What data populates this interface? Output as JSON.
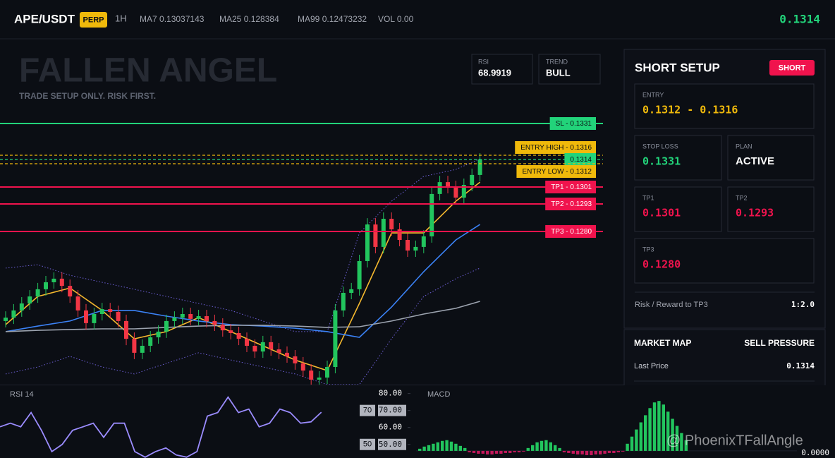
{
  "header": {
    "symbol": "APE/USDT",
    "badge": "PERP",
    "interval": "1H",
    "readouts": [
      {
        "label": "MA7",
        "value": 0.13037143
      },
      {
        "label": "MA25",
        "value": 0.128384
      },
      {
        "label": "MA99",
        "value": 0.12473232
      },
      {
        "label": "VOL",
        "value": "0.00"
      }
    ],
    "last_price": 0.1314
  },
  "watermark": {
    "title": "FALLEN ANGEL",
    "subtitle": "TRADE SETUP ONLY. RISK FIRST."
  },
  "indicators": [
    {
      "label": "RSI",
      "value": 68.9919
    },
    {
      "label": "TREND",
      "value": "BULL"
    }
  ],
  "setup": {
    "title": "SHORT SETUP",
    "badge": "SHORT",
    "cards": [
      {
        "label": "ENTRY",
        "value": "0.1312 - 0.1316",
        "color": "#f0b90b"
      },
      {
        "label": "STOP LOSS",
        "value": "0.1331",
        "color": "#22d37a"
      },
      {
        "label": "PLAN",
        "value": "ACTIVE",
        "color": "#ffffff"
      },
      {
        "label": "TP1",
        "value": "0.1301",
        "color": "#f0134d"
      },
      {
        "label": "TP2",
        "value": "0.1293",
        "color": "#f0134d"
      },
      {
        "label": "TP3",
        "value": "0.1280",
        "color": "#f0134d"
      }
    ],
    "rr_label": "Risk / Reward to TP3",
    "rr_value": "1:2.0"
  },
  "market_map": {
    "title": "MARKET MAP",
    "state": "SELL PRESSURE",
    "rows": [
      {
        "label": "Last Price",
        "value": 0.1314
      }
    ]
  },
  "overlay": "@ PhoenixTFallAngle",
  "chart_data": [
    {
      "type": "candlestick",
      "ylim": [
        0.1207,
        0.1371
      ],
      "up_color": "#22c55e",
      "down_color": "#f23645",
      "open": [
        0.12377,
        0.12393,
        0.12427,
        0.1246,
        0.12493,
        0.12527,
        0.1256,
        0.12577,
        0.12543,
        0.12493,
        0.12427,
        0.12367,
        0.1241,
        0.12433,
        0.1242,
        0.12377,
        0.12293,
        0.12227,
        0.1226,
        0.123,
        0.12327,
        0.12377,
        0.12393,
        0.1241,
        0.12387,
        0.124,
        0.12377,
        0.1236,
        0.12333,
        0.1232,
        0.12293,
        0.1226,
        0.12233,
        0.12277,
        0.12243,
        0.12227,
        0.1221,
        0.12177,
        0.12143,
        0.121,
        0.1211,
        0.1216,
        0.12427,
        0.1251,
        0.12527,
        0.1266,
        0.12833,
        0.12727,
        0.1286,
        0.1281,
        0.1276,
        0.1271,
        0.12727,
        0.12777,
        0.12977,
        0.13033,
        0.1301,
        0.1296,
        0.1302,
        0.13067
      ],
      "high": [
        0.12423,
        0.12457,
        0.1249,
        0.12523,
        0.12557,
        0.1259,
        0.12607,
        0.12607,
        0.12573,
        0.12523,
        0.12457,
        0.1244,
        0.12463,
        0.12463,
        0.1245,
        0.12407,
        0.12323,
        0.1229,
        0.1233,
        0.12357,
        0.12407,
        0.12423,
        0.1244,
        0.1244,
        0.1243,
        0.1243,
        0.12407,
        0.1239,
        0.12363,
        0.1235,
        0.12323,
        0.1229,
        0.12307,
        0.12307,
        0.12273,
        0.12257,
        0.1224,
        0.12207,
        0.12173,
        0.1214,
        0.1219,
        0.12457,
        0.1254,
        0.12557,
        0.1269,
        0.12863,
        0.12863,
        0.1289,
        0.1289,
        0.1284,
        0.1279,
        0.12757,
        0.12807,
        0.13007,
        0.13063,
        0.13063,
        0.1304,
        0.1305,
        0.13097,
        0.1317
      ],
      "low": [
        0.12347,
        0.12363,
        0.12397,
        0.1243,
        0.12463,
        0.12497,
        0.1253,
        0.12513,
        0.12463,
        0.12397,
        0.12337,
        0.12337,
        0.1238,
        0.1239,
        0.12347,
        0.12263,
        0.12197,
        0.12197,
        0.1223,
        0.1227,
        0.12297,
        0.12347,
        0.12363,
        0.12357,
        0.12357,
        0.12347,
        0.1233,
        0.12303,
        0.1229,
        0.12263,
        0.1223,
        0.12203,
        0.12203,
        0.12213,
        0.12197,
        0.1218,
        0.12147,
        0.12113,
        0.1207,
        0.1207,
        0.1208,
        0.1213,
        0.12397,
        0.1248,
        0.12497,
        0.1263,
        0.12697,
        0.12697,
        0.1278,
        0.1273,
        0.1268,
        0.1268,
        0.12697,
        0.12747,
        0.12947,
        0.1298,
        0.1293,
        0.1293,
        0.1299,
        0.13037
      ],
      "close": [
        0.12393,
        0.12427,
        0.1246,
        0.12493,
        0.12527,
        0.1256,
        0.12577,
        0.12543,
        0.12493,
        0.12427,
        0.12367,
        0.1241,
        0.12433,
        0.1242,
        0.12377,
        0.12293,
        0.12227,
        0.1226,
        0.123,
        0.12327,
        0.12377,
        0.12393,
        0.1241,
        0.12387,
        0.124,
        0.12377,
        0.1236,
        0.12333,
        0.1232,
        0.12293,
        0.1226,
        0.12233,
        0.12277,
        0.12243,
        0.12227,
        0.1221,
        0.12177,
        0.12143,
        0.121,
        0.1211,
        0.1216,
        0.12427,
        0.1251,
        0.12527,
        0.1266,
        0.12833,
        0.12727,
        0.1286,
        0.1281,
        0.1276,
        0.1271,
        0.12727,
        0.12777,
        0.12977,
        0.13033,
        0.1301,
        0.1296,
        0.1302,
        0.13067,
        0.1314
      ],
      "ma_index": [
        0,
        4,
        8,
        12,
        16,
        20,
        24,
        28,
        32,
        36,
        40,
        44,
        48,
        52,
        56,
        59
      ],
      "ma_lines": [
        {
          "color": "#f5b82e",
          "values": [
            0.1236,
            0.12493,
            0.12533,
            0.12427,
            0.12293,
            0.12327,
            0.12393,
            0.12327,
            0.1226,
            0.12193,
            0.12143,
            0.1246,
            0.12793,
            0.12793,
            0.12943,
            0.13033
          ]
        },
        {
          "color": "#3b82f6",
          "values": [
            0.12327,
            0.12353,
            0.12377,
            0.12427,
            0.12427,
            0.124,
            0.12377,
            0.1236,
            0.12353,
            0.12343,
            0.12327,
            0.123,
            0.12443,
            0.1261,
            0.1276,
            0.12833
          ]
        },
        {
          "color": "#9ca3af",
          "values": [
            0.12327,
            0.12333,
            0.12337,
            0.1234,
            0.1234,
            0.12347,
            0.12353,
            0.12357,
            0.12357,
            0.12353,
            0.12347,
            0.1235,
            0.12377,
            0.1241,
            0.12437,
            0.1247
          ]
        }
      ],
      "bands": [
        {
          "color": "#6d5fd6",
          "values": [
            0.12627,
            0.12643,
            0.12593,
            0.1256,
            0.12527,
            0.12493,
            0.1246,
            0.12427,
            0.12377,
            0.12327,
            0.12327,
            0.12793,
            0.12943,
            0.1306,
            0.13093,
            0.13143
          ]
        },
        {
          "color": "#6d5fd6",
          "values": [
            0.12127,
            0.1216,
            0.1221,
            0.1216,
            0.12127,
            0.12177,
            0.12227,
            0.12193,
            0.1216,
            0.12127,
            0.12077,
            0.12077,
            0.12293,
            0.12493,
            0.12577,
            0.12627
          ]
        }
      ],
      "levels": [
        {
          "label": "SL - 0.1331",
          "price": 0.1331,
          "color": "#22d37a",
          "text_color": "#0b0e14",
          "style": "solid"
        },
        {
          "label": "ENTRY HIGH - 0.1316",
          "price": 0.1316,
          "color": "#f0b90b",
          "text_color": "#0b0e14",
          "style": "dashed"
        },
        {
          "label": "0.1314",
          "price": 0.1314,
          "color": "#22d37a",
          "text_color": "#0b0e14",
          "style": "dashed"
        },
        {
          "label": "ENTRY LOW - 0.1312",
          "price": 0.1312,
          "color": "#f0b90b",
          "text_color": "#0b0e14",
          "style": "dashed"
        },
        {
          "label": "TP1 - 0.1301",
          "price": 0.1301,
          "color": "#f0134d",
          "text_color": "#ffffff",
          "style": "solid"
        },
        {
          "label": "TP2 - 0.1293",
          "price": 0.1293,
          "color": "#f0134d",
          "text_color": "#ffffff",
          "style": "solid"
        },
        {
          "label": "TP3 - 0.1280",
          "price": 0.128,
          "color": "#f0134d",
          "text_color": "#ffffff",
          "style": "solid"
        }
      ]
    },
    {
      "type": "line",
      "title": "RSI 14",
      "color": "#9b8cff",
      "ylim": [
        42,
        84
      ],
      "values": [
        60.4,
        62.5,
        60.4,
        68.8,
        58.3,
        45.8,
        50.0,
        58.3,
        60.4,
        62.5,
        54.2,
        62.5,
        62.5,
        45.8,
        42.5,
        45.8,
        47.9,
        43.8,
        42.5,
        45.8,
        66.7,
        68.8,
        77.9,
        68.8,
        70.8,
        60.4,
        62.5,
        70.8,
        68.8,
        62.5,
        63.3,
        69.0
      ],
      "yticks": [
        {
          "value": 80,
          "label": "80.00"
        },
        {
          "value": 70,
          "label": "70.00"
        },
        {
          "value": 60,
          "label": "60.00"
        },
        {
          "value": 50,
          "label": "50.00"
        }
      ],
      "levels": [
        {
          "value": 70,
          "label": "70"
        },
        {
          "value": 50,
          "label": "50"
        }
      ]
    },
    {
      "type": "bar",
      "title": "MACD",
      "up_color": "#22c55e",
      "down_color": "#c2185b",
      "ylim": [
        -0.0001,
        0.0009
      ],
      "yticks": [
        {
          "value": 0,
          "label": "0.0000"
        }
      ],
      "values": [
        3e-05,
        6e-05,
        8e-05,
        0.0001,
        0.00012,
        0.00014,
        0.00015,
        0.00013,
        0.0001,
        7e-05,
        4e-05,
        -2e-05,
        -3e-05,
        -4e-05,
        -4e-05,
        -5e-05,
        -5e-05,
        -4e-05,
        -4e-05,
        -3e-05,
        -3e-05,
        -2e-05,
        -2e-05,
        -1e-05,
        4e-05,
        8e-05,
        0.00012,
        0.00014,
        0.00015,
        0.00012,
        8e-05,
        4e-05,
        -2e-05,
        -3e-05,
        -4e-05,
        -5e-05,
        -5e-05,
        -6e-05,
        -6e-05,
        -5e-05,
        -5e-05,
        -4e-05,
        -3e-05,
        -3e-05,
        -2e-05,
        -1e-05,
        0.0001,
        0.0002,
        0.0003,
        0.0004,
        0.0005,
        0.0006,
        0.00068,
        0.0007,
        0.00065,
        0.00055,
        0.00045,
        0.00035,
        0.00025,
        0.00015
      ]
    }
  ]
}
